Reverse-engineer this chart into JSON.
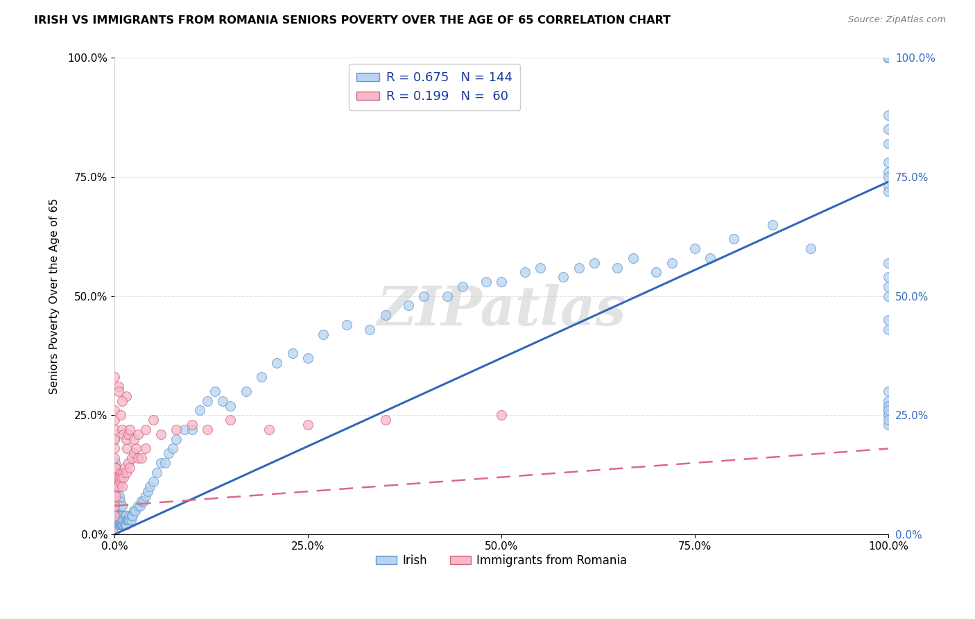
{
  "title": "IRISH VS IMMIGRANTS FROM ROMANIA SENIORS POVERTY OVER THE AGE OF 65 CORRELATION CHART",
  "source": "Source: ZipAtlas.com",
  "ylabel": "Seniors Poverty Over the Age of 65",
  "irish_R": 0.675,
  "irish_N": 144,
  "romania_R": 0.199,
  "romania_N": 60,
  "irish_color": "#b8d4f0",
  "ireland_edge": "#6699cc",
  "romania_color": "#f8b8c8",
  "romania_edge": "#d06880",
  "irish_line_color": "#3366bb",
  "romania_line_color": "#e06880",
  "right_tick_color": "#3a6abf",
  "bg_color": "#ffffff",
  "grid_color": "#e0e0e0",
  "watermark": "ZIPatlas",
  "irish_regression_slope": 0.74,
  "irish_regression_intercept": 0.0,
  "romania_regression_slope": 0.12,
  "romania_regression_intercept": 0.06,
  "xlim": [
    0.0,
    1.0
  ],
  "ylim": [
    0.0,
    1.0
  ],
  "ytick_vals": [
    0.0,
    0.25,
    0.5,
    0.75,
    1.0
  ],
  "ytick_labels": [
    "0.0%",
    "25.0%",
    "50.0%",
    "75.0%",
    "100.0%"
  ],
  "xtick_vals": [
    0.0,
    0.25,
    0.5,
    0.75,
    1.0
  ],
  "xtick_labels": [
    "0.0%",
    "25.0%",
    "50.0%",
    "75.0%",
    "100.0%"
  ],
  "irish_x": [
    0.0,
    0.0,
    0.0,
    0.001,
    0.001,
    0.001,
    0.002,
    0.002,
    0.002,
    0.002,
    0.003,
    0.003,
    0.003,
    0.003,
    0.004,
    0.004,
    0.004,
    0.005,
    0.005,
    0.005,
    0.005,
    0.006,
    0.006,
    0.006,
    0.007,
    0.007,
    0.007,
    0.008,
    0.008,
    0.008,
    0.009,
    0.009,
    0.01,
    0.01,
    0.01,
    0.011,
    0.011,
    0.012,
    0.012,
    0.013,
    0.013,
    0.014,
    0.014,
    0.015,
    0.015,
    0.016,
    0.017,
    0.018,
    0.019,
    0.02,
    0.021,
    0.022,
    0.023,
    0.025,
    0.027,
    0.03,
    0.033,
    0.035,
    0.038,
    0.04,
    0.043,
    0.046,
    0.05,
    0.055,
    0.06,
    0.065,
    0.07,
    0.075,
    0.08,
    0.09,
    0.1,
    0.11,
    0.12,
    0.13,
    0.14,
    0.15,
    0.17,
    0.19,
    0.21,
    0.23,
    0.25,
    0.27,
    0.3,
    0.33,
    0.35,
    0.38,
    0.4,
    0.43,
    0.45,
    0.48,
    0.5,
    0.53,
    0.55,
    0.58,
    0.6,
    0.62,
    0.65,
    0.67,
    0.7,
    0.72,
    0.75,
    0.77,
    0.8,
    0.85,
    0.9,
    1.0,
    1.0,
    1.0,
    1.0,
    1.0,
    1.0,
    1.0,
    1.0,
    1.0,
    1.0,
    1.0,
    1.0,
    1.0,
    1.0,
    1.0,
    1.0,
    1.0,
    1.0,
    1.0,
    1.0,
    1.0,
    1.0,
    1.0,
    1.0,
    1.0,
    1.0,
    1.0,
    1.0,
    1.0,
    1.0,
    1.0,
    1.0,
    1.0,
    1.0,
    1.0,
    1.0,
    1.0,
    1.0,
    1.0
  ],
  "irish_y": [
    0.08,
    0.12,
    0.2,
    0.05,
    0.08,
    0.15,
    0.04,
    0.06,
    0.1,
    0.14,
    0.03,
    0.05,
    0.08,
    0.12,
    0.03,
    0.06,
    0.1,
    0.02,
    0.04,
    0.07,
    0.11,
    0.02,
    0.04,
    0.08,
    0.02,
    0.04,
    0.07,
    0.02,
    0.03,
    0.06,
    0.02,
    0.04,
    0.02,
    0.03,
    0.06,
    0.02,
    0.04,
    0.02,
    0.03,
    0.02,
    0.04,
    0.02,
    0.03,
    0.02,
    0.04,
    0.03,
    0.03,
    0.03,
    0.03,
    0.04,
    0.03,
    0.04,
    0.04,
    0.05,
    0.05,
    0.06,
    0.06,
    0.07,
    0.07,
    0.08,
    0.09,
    0.1,
    0.11,
    0.13,
    0.15,
    0.15,
    0.17,
    0.18,
    0.2,
    0.22,
    0.22,
    0.26,
    0.28,
    0.3,
    0.28,
    0.27,
    0.3,
    0.33,
    0.36,
    0.38,
    0.37,
    0.42,
    0.44,
    0.43,
    0.46,
    0.48,
    0.5,
    0.5,
    0.52,
    0.53,
    0.53,
    0.55,
    0.56,
    0.54,
    0.56,
    0.57,
    0.56,
    0.58,
    0.55,
    0.57,
    0.6,
    0.58,
    0.62,
    0.65,
    0.6,
    1.0,
    1.0,
    1.0,
    1.0,
    1.0,
    1.0,
    1.0,
    1.0,
    1.0,
    1.0,
    1.0,
    1.0,
    1.0,
    1.0,
    1.0,
    0.88,
    0.85,
    0.82,
    0.78,
    0.76,
    0.75,
    0.73,
    0.72,
    0.57,
    0.54,
    0.52,
    0.5,
    0.45,
    0.43,
    0.25,
    0.27,
    0.28,
    0.3,
    0.26,
    0.27,
    0.23,
    0.25,
    0.26,
    0.24
  ],
  "romania_x": [
    0.0,
    0.0,
    0.0,
    0.0,
    0.0,
    0.0,
    0.0,
    0.0,
    0.0,
    0.002,
    0.002,
    0.003,
    0.004,
    0.005,
    0.006,
    0.007,
    0.008,
    0.009,
    0.01,
    0.011,
    0.012,
    0.013,
    0.015,
    0.016,
    0.018,
    0.02,
    0.022,
    0.025,
    0.028,
    0.03,
    0.035,
    0.04,
    0.015,
    0.01,
    0.005,
    0.0,
    0.0,
    0.0,
    0.0,
    0.0,
    0.005,
    0.008,
    0.01,
    0.012,
    0.015,
    0.018,
    0.02,
    0.025,
    0.03,
    0.04,
    0.05,
    0.06,
    0.08,
    0.1,
    0.12,
    0.15,
    0.2,
    0.25,
    0.35,
    0.5
  ],
  "romania_y": [
    0.0,
    0.04,
    0.06,
    0.08,
    0.1,
    0.12,
    0.14,
    0.16,
    0.18,
    0.08,
    0.14,
    0.1,
    0.12,
    0.1,
    0.12,
    0.11,
    0.13,
    0.12,
    0.1,
    0.13,
    0.12,
    0.14,
    0.13,
    0.18,
    0.15,
    0.14,
    0.16,
    0.17,
    0.18,
    0.16,
    0.16,
    0.18,
    0.29,
    0.28,
    0.31,
    0.22,
    0.24,
    0.26,
    0.2,
    0.33,
    0.3,
    0.25,
    0.22,
    0.21,
    0.2,
    0.21,
    0.22,
    0.2,
    0.21,
    0.22,
    0.24,
    0.21,
    0.22,
    0.23,
    0.22,
    0.24,
    0.22,
    0.23,
    0.24,
    0.25
  ]
}
